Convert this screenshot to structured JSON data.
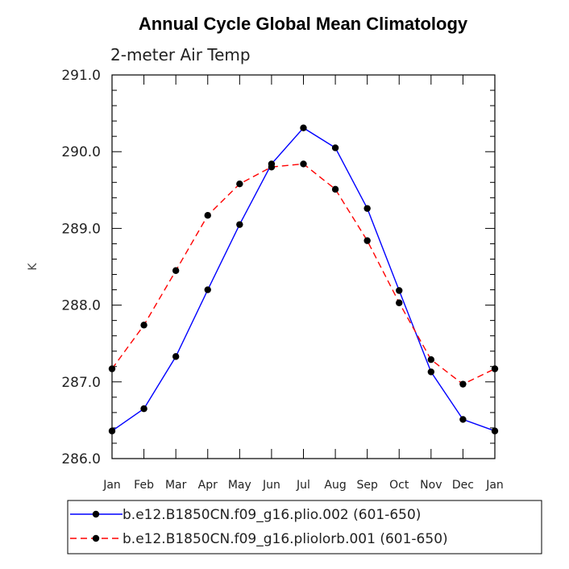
{
  "chart_data": {
    "type": "line",
    "title": "Annual Cycle Global Mean Climatology",
    "subtitle": "2-meter Air Temp",
    "ylabel": "K",
    "xlabel": "",
    "categories": [
      "Jan",
      "Feb",
      "Mar",
      "Apr",
      "May",
      "Jun",
      "Jul",
      "Aug",
      "Sep",
      "Oct",
      "Nov",
      "Dec",
      "Jan"
    ],
    "ylim": [
      286.0,
      291.0
    ],
    "yticks": [
      "286.0",
      "287.0",
      "288.0",
      "289.0",
      "290.0",
      "291.0"
    ],
    "grid": false,
    "legend_position": "bottom",
    "series": [
      {
        "name": "b.e12.B1850CN.f09_g16.plio.002 (601-650)",
        "color": "#0000ff",
        "dash": "solid",
        "values": [
          286.36,
          286.65,
          287.33,
          288.2,
          289.05,
          289.84,
          290.31,
          290.05,
          289.26,
          288.19,
          287.13,
          286.51,
          286.36
        ]
      },
      {
        "name": "b.e12.B1850CN.f09_g16.pliolorb.001 (601-650)",
        "color": "#ff0000",
        "dash": "dashed",
        "values": [
          287.17,
          287.74,
          288.45,
          289.17,
          289.58,
          289.8,
          289.84,
          289.51,
          288.84,
          288.03,
          287.29,
          286.97,
          287.17
        ]
      }
    ]
  }
}
